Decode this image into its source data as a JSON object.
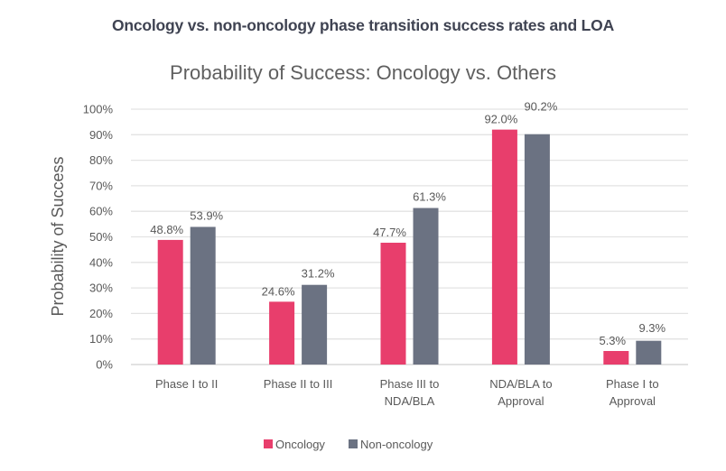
{
  "header": {
    "title": "Oncology vs. non-oncology phase transition success rates and LOA"
  },
  "chart_data": {
    "type": "bar",
    "title": "Probability of Success: Oncology vs. Others",
    "xlabel": "",
    "ylabel": "Probability of Success",
    "ylim": [
      0,
      100
    ],
    "yticks": [
      0,
      10,
      20,
      30,
      40,
      50,
      60,
      70,
      80,
      90,
      100
    ],
    "ytick_labels": [
      "0%",
      "10%",
      "20%",
      "30%",
      "40%",
      "50%",
      "60%",
      "70%",
      "80%",
      "90%",
      "100%"
    ],
    "grid": true,
    "legend_position": "bottom",
    "categories": [
      [
        "Phase I to II"
      ],
      [
        "Phase II to III"
      ],
      [
        "Phase III to",
        "NDA/BLA"
      ],
      [
        "NDA/BLA to",
        "Approval"
      ],
      [
        "Phase I to",
        "Approval"
      ]
    ],
    "series": [
      {
        "name": "Oncology",
        "color": "#E83E6C",
        "values": [
          48.8,
          24.6,
          47.7,
          92.0,
          5.3
        ],
        "labels": [
          "48.8%",
          "24.6%",
          "47.7%",
          "92.0%",
          "5.3%"
        ]
      },
      {
        "name": "Non-oncology",
        "color": "#6B7282",
        "values": [
          53.9,
          31.2,
          61.3,
          90.2,
          9.3
        ],
        "labels": [
          "53.9%",
          "31.2%",
          "61.3%",
          "90.2%",
          "9.3%"
        ]
      }
    ]
  }
}
